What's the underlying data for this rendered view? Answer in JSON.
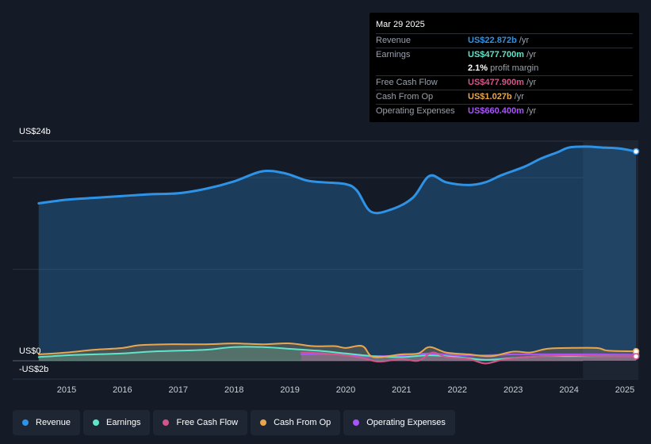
{
  "tooltip": {
    "date": "Mar 29 2025",
    "rows": [
      {
        "label": "Revenue",
        "value": "US$22.872b",
        "unit": "/yr",
        "color": "#2e93e6"
      },
      {
        "label": "Earnings",
        "value": "US$477.700m",
        "unit": "/yr",
        "color": "#5ee6c8"
      },
      {
        "label": "",
        "value": "2.1%",
        "unit": "profit margin",
        "color": "#ffffff"
      },
      {
        "label": "Free Cash Flow",
        "value": "US$477.900m",
        "unit": "/yr",
        "color": "#d4558a"
      },
      {
        "label": "Cash From Op",
        "value": "US$1.027b",
        "unit": "/yr",
        "color": "#e8a74e"
      },
      {
        "label": "Operating Expenses",
        "value": "US$660.400m",
        "unit": "/yr",
        "color": "#a855f7"
      }
    ]
  },
  "axis": {
    "y_top": "US$24b",
    "y_zero": "US$0",
    "y_bottom": "-US$2b"
  },
  "legend": [
    {
      "label": "Revenue",
      "color": "#2e93e6"
    },
    {
      "label": "Earnings",
      "color": "#5ee6c8"
    },
    {
      "label": "Free Cash Flow",
      "color": "#d4558a"
    },
    {
      "label": "Cash From Op",
      "color": "#e8a74e"
    },
    {
      "label": "Operating Expenses",
      "color": "#a855f7"
    }
  ],
  "chart_data": {
    "type": "area",
    "x_ticks": [
      "2015",
      "2016",
      "2017",
      "2018",
      "2019",
      "2020",
      "2021",
      "2022",
      "2023",
      "2024",
      "2025"
    ],
    "ylim": [
      -2,
      24
    ],
    "y_ticks": [
      24,
      0,
      -2
    ],
    "series": [
      {
        "name": "Revenue",
        "color": "#2e93e6",
        "points": [
          [
            2014.5,
            17.2
          ],
          [
            2015.0,
            17.6
          ],
          [
            2015.5,
            17.8
          ],
          [
            2016.0,
            18.0
          ],
          [
            2016.5,
            18.2
          ],
          [
            2017.0,
            18.3
          ],
          [
            2017.5,
            18.8
          ],
          [
            2018.0,
            19.6
          ],
          [
            2018.5,
            20.7
          ],
          [
            2018.9,
            20.5
          ],
          [
            2019.3,
            19.7
          ],
          [
            2019.6,
            19.5
          ],
          [
            2020.0,
            19.3
          ],
          [
            2020.2,
            18.6
          ],
          [
            2020.45,
            16.3
          ],
          [
            2020.8,
            16.5
          ],
          [
            2021.2,
            17.8
          ],
          [
            2021.5,
            20.2
          ],
          [
            2021.8,
            19.5
          ],
          [
            2022.2,
            19.2
          ],
          [
            2022.5,
            19.5
          ],
          [
            2022.8,
            20.3
          ],
          [
            2023.2,
            21.2
          ],
          [
            2023.5,
            22.1
          ],
          [
            2023.8,
            22.8
          ],
          [
            2024.0,
            23.3
          ],
          [
            2024.3,
            23.4
          ],
          [
            2024.6,
            23.3
          ],
          [
            2024.9,
            23.2
          ],
          [
            2025.2,
            22.872
          ]
        ]
      },
      {
        "name": "Earnings",
        "color": "#5ee6c8",
        "points": [
          [
            2014.5,
            0.4
          ],
          [
            2015.0,
            0.6
          ],
          [
            2015.5,
            0.7
          ],
          [
            2016.0,
            0.8
          ],
          [
            2016.5,
            1.0
          ],
          [
            2017.0,
            1.1
          ],
          [
            2017.5,
            1.2
          ],
          [
            2018.0,
            1.5
          ],
          [
            2018.5,
            1.5
          ],
          [
            2019.0,
            1.3
          ],
          [
            2019.5,
            1.1
          ],
          [
            2020.0,
            0.8
          ],
          [
            2020.5,
            0.5
          ],
          [
            2021.0,
            0.4
          ],
          [
            2021.5,
            0.6
          ],
          [
            2022.0,
            0.4
          ],
          [
            2022.5,
            0.1
          ],
          [
            2023.0,
            0.3
          ],
          [
            2023.5,
            0.5
          ],
          [
            2024.0,
            0.5
          ],
          [
            2024.5,
            0.5
          ],
          [
            2025.2,
            0.4777
          ]
        ]
      },
      {
        "name": "Free Cash Flow",
        "color": "#d4558a",
        "points": [
          [
            2019.2,
            0.9
          ],
          [
            2019.6,
            0.8
          ],
          [
            2020.0,
            0.6
          ],
          [
            2020.3,
            0.3
          ],
          [
            2020.6,
            -0.1
          ],
          [
            2021.0,
            0.2
          ],
          [
            2021.3,
            0.0
          ],
          [
            2021.55,
            0.9
          ],
          [
            2021.8,
            0.4
          ],
          [
            2022.2,
            0.2
          ],
          [
            2022.5,
            -0.3
          ],
          [
            2022.8,
            0.1
          ],
          [
            2023.2,
            0.4
          ],
          [
            2023.6,
            0.5
          ],
          [
            2024.0,
            0.6
          ],
          [
            2024.5,
            0.5
          ],
          [
            2025.2,
            0.4779
          ]
        ]
      },
      {
        "name": "Cash From Op",
        "color": "#e8a74e",
        "points": [
          [
            2014.5,
            0.7
          ],
          [
            2015.0,
            0.9
          ],
          [
            2015.5,
            1.2
          ],
          [
            2016.0,
            1.4
          ],
          [
            2016.3,
            1.7
          ],
          [
            2016.8,
            1.8
          ],
          [
            2017.5,
            1.8
          ],
          [
            2018.0,
            1.9
          ],
          [
            2018.5,
            1.8
          ],
          [
            2019.0,
            1.9
          ],
          [
            2019.4,
            1.6
          ],
          [
            2019.8,
            1.6
          ],
          [
            2020.0,
            1.4
          ],
          [
            2020.3,
            1.6
          ],
          [
            2020.5,
            0.4
          ],
          [
            2021.0,
            0.7
          ],
          [
            2021.3,
            0.8
          ],
          [
            2021.5,
            1.5
          ],
          [
            2021.8,
            0.9
          ],
          [
            2022.2,
            0.7
          ],
          [
            2022.6,
            0.5
          ],
          [
            2023.0,
            1.0
          ],
          [
            2023.3,
            0.9
          ],
          [
            2023.6,
            1.3
          ],
          [
            2024.0,
            1.4
          ],
          [
            2024.5,
            1.4
          ],
          [
            2024.7,
            1.1
          ],
          [
            2025.2,
            1.027
          ]
        ]
      },
      {
        "name": "Operating Expenses",
        "color": "#a855f7",
        "points": [
          [
            2019.2,
            0.7
          ],
          [
            2019.8,
            0.7
          ],
          [
            2020.3,
            0.5
          ],
          [
            2020.6,
            0.5
          ],
          [
            2021.0,
            0.6
          ],
          [
            2021.5,
            0.8
          ],
          [
            2022.0,
            0.6
          ],
          [
            2022.5,
            0.6
          ],
          [
            2023.0,
            0.7
          ],
          [
            2023.5,
            0.7
          ],
          [
            2024.0,
            0.7
          ],
          [
            2024.5,
            0.7
          ],
          [
            2025.2,
            0.6604
          ]
        ]
      }
    ]
  }
}
